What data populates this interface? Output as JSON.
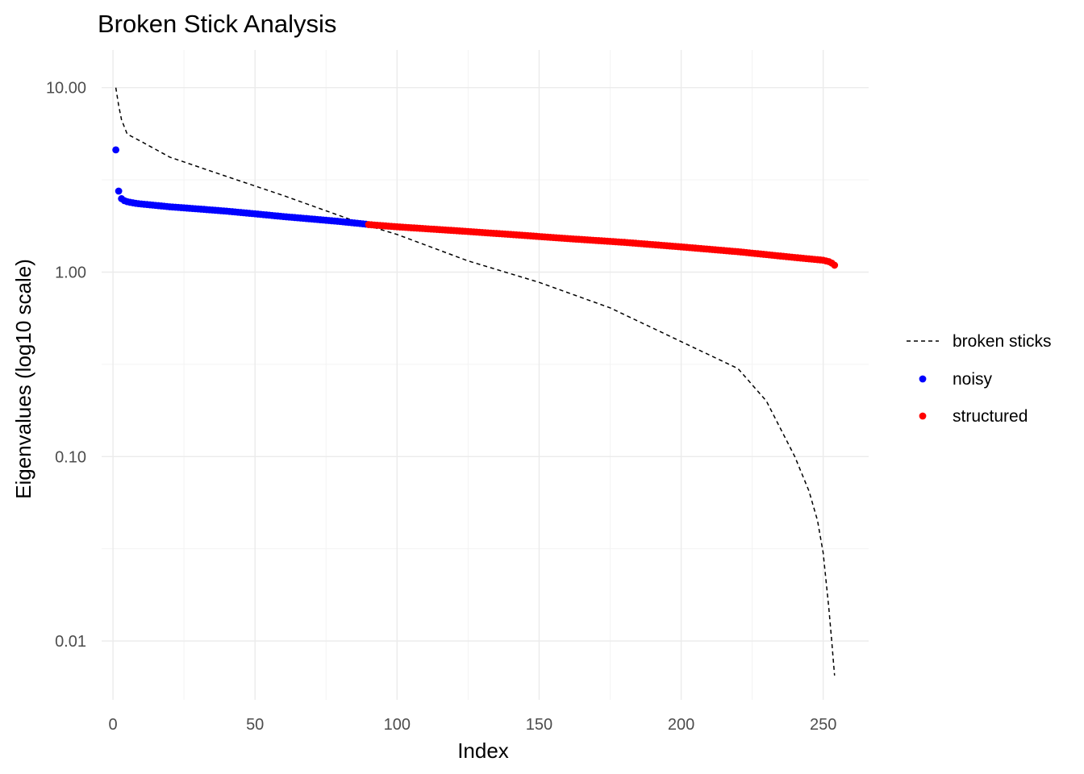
{
  "chart_data": {
    "type": "scatter",
    "title": "Broken Stick Analysis",
    "xlabel": "Index",
    "ylabel": "Eigenvalues (log10 scale)",
    "x_axis": {
      "range": [
        -4,
        266
      ],
      "ticks": [
        0,
        50,
        100,
        150,
        200,
        250
      ],
      "tick_labels": [
        "0",
        "50",
        "100",
        "150",
        "200",
        "250"
      ]
    },
    "y_axis": {
      "scale": "log10",
      "range": [
        0.0048,
        16
      ],
      "ticks": [
        0.01,
        0.1,
        1,
        10
      ],
      "tick_labels": [
        "0.01",
        "0.10",
        "1.00",
        "10.00"
      ]
    },
    "grid": true,
    "legend_position": "right",
    "legend": [
      {
        "label": "broken sticks",
        "kind": "dashed-line",
        "color": "#000000"
      },
      {
        "label": "noisy",
        "kind": "point",
        "color": "#0000ff"
      },
      {
        "label": "structured",
        "kind": "point",
        "color": "#ff0000"
      }
    ],
    "series": [
      {
        "name": "noisy",
        "color": "#0000ff",
        "kind": "points",
        "x_range": [
          1,
          89
        ],
        "x": [
          1,
          2,
          3,
          4,
          5,
          6,
          8,
          10,
          15,
          20,
          30,
          40,
          50,
          60,
          70,
          80,
          89
        ],
        "y": [
          4.6,
          2.75,
          2.5,
          2.44,
          2.41,
          2.39,
          2.36,
          2.34,
          2.3,
          2.26,
          2.2,
          2.14,
          2.07,
          2.0,
          1.94,
          1.88,
          1.82
        ]
      },
      {
        "name": "structured",
        "color": "#ff0000",
        "kind": "points",
        "x_range": [
          90,
          254
        ],
        "x": [
          90,
          100,
          120,
          140,
          160,
          180,
          200,
          220,
          240,
          250,
          252,
          253,
          254
        ],
        "y": [
          1.81,
          1.76,
          1.68,
          1.6,
          1.52,
          1.45,
          1.37,
          1.29,
          1.2,
          1.16,
          1.14,
          1.12,
          1.09
        ]
      },
      {
        "name": "broken sticks",
        "color": "#000000",
        "kind": "dashed-line",
        "x": [
          1,
          2,
          3,
          5,
          10,
          20,
          40,
          60,
          89,
          100,
          125,
          150,
          175,
          200,
          220,
          230,
          240,
          245,
          248,
          250,
          252,
          253,
          254
        ],
        "y": [
          10.0,
          8.0,
          6.7,
          5.6,
          5.1,
          4.2,
          3.3,
          2.6,
          1.8,
          1.6,
          1.15,
          0.88,
          0.64,
          0.42,
          0.3,
          0.2,
          0.1,
          0.065,
          0.045,
          0.03,
          0.015,
          0.01,
          0.0065
        ]
      }
    ]
  }
}
